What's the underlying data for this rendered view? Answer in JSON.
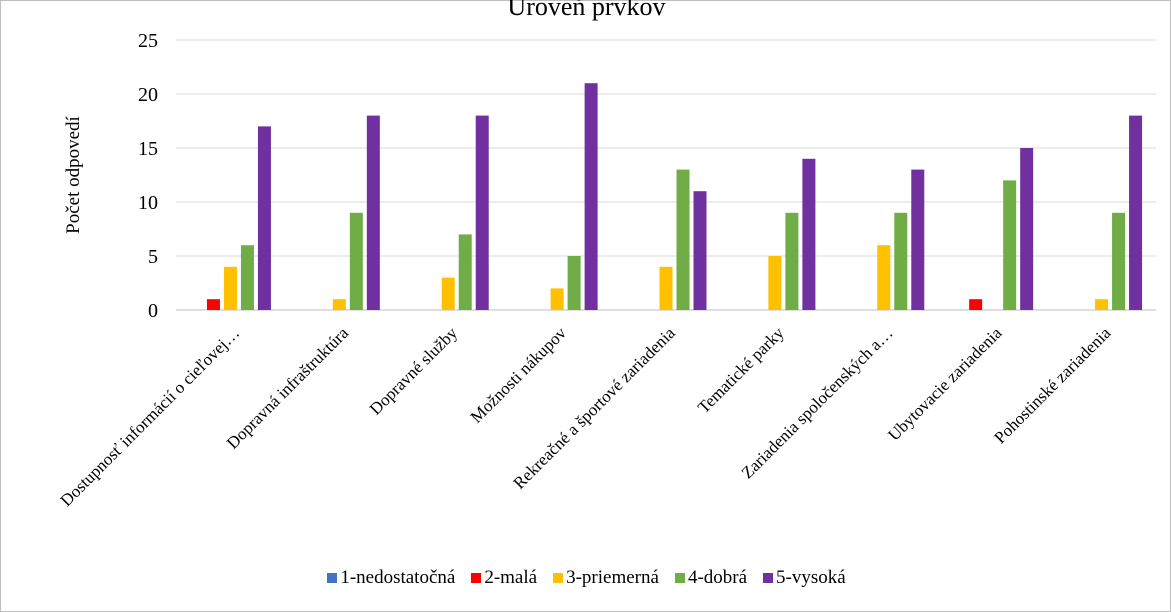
{
  "chart_data": {
    "type": "bar",
    "title": "Úroveň prvkov",
    "xlabel": "",
    "ylabel": "Počet odpovedí",
    "ylim": [
      0,
      25
    ],
    "yticks": [
      0,
      5,
      10,
      15,
      20,
      25
    ],
    "grid": true,
    "legend_position": "bottom",
    "categories": [
      "Dostupnosť informácií o cieľovej…",
      "Dopravná infraštruktúra",
      "Dopravné služby",
      "Možnosti nákupov",
      "Rekreačné a športové zariadenia",
      "Tematické parky",
      "Zariadenia spoločenských a…",
      "Ubytovacie zariadenia",
      "Pohostinské zariadenia"
    ],
    "series": [
      {
        "name": "1-nedostatočná",
        "color": "#4472c4",
        "values": [
          0,
          0,
          0,
          0,
          0,
          0,
          0,
          0,
          0
        ]
      },
      {
        "name": "2-malá",
        "color": "#ff0000",
        "values": [
          1,
          0,
          0,
          0,
          0,
          0,
          0,
          1,
          0
        ]
      },
      {
        "name": "3-priemerná",
        "color": "#ffc000",
        "values": [
          4,
          1,
          3,
          2,
          4,
          5,
          6,
          0,
          1
        ]
      },
      {
        "name": "4-dobrá",
        "color": "#70ad47",
        "values": [
          6,
          9,
          7,
          5,
          13,
          9,
          9,
          12,
          9
        ]
      },
      {
        "name": "5-vysoká",
        "color": "#7030a0",
        "values": [
          17,
          18,
          18,
          21,
          11,
          14,
          13,
          15,
          18
        ]
      }
    ]
  }
}
